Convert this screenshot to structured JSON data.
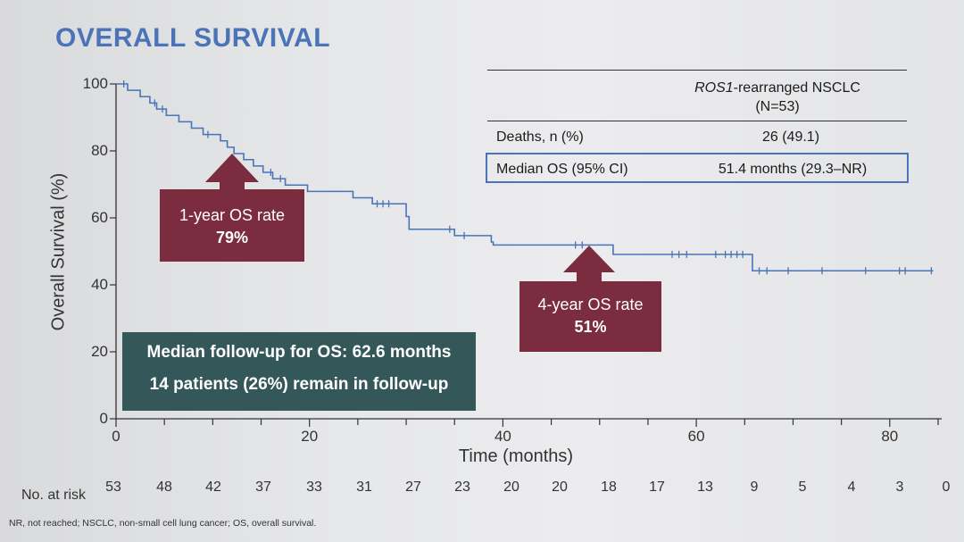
{
  "title": "OVERALL SURVIVAL",
  "footnote": "NR, not reached; NSCLC, non-small cell lung cancer; OS, overall survival.",
  "risk_table": {
    "label": "No. at risk",
    "months": [
      0,
      5,
      10,
      15,
      20,
      25,
      30,
      35,
      40,
      45,
      50,
      55,
      60,
      65,
      70,
      75,
      80,
      85
    ],
    "values": [
      "53",
      "48",
      "42",
      "37",
      "33",
      "31",
      "27",
      "23",
      "20",
      "20",
      "18",
      "17",
      "13",
      "9",
      "5",
      "4",
      "3",
      "0"
    ]
  },
  "stats_table": {
    "header_italic": "ROS1",
    "header_rest": "-rearranged NSCLC",
    "header_n": "(N=53)",
    "rows": [
      {
        "label": "Deaths, n (%)",
        "value": "26 (49.1)"
      },
      {
        "label": "Median OS (95% CI)",
        "value": "51.4 months (29.3–NR)"
      }
    ]
  },
  "callouts": {
    "one_year": {
      "line1": "1-year OS rate",
      "line2": "79%"
    },
    "four_year": {
      "line1": "4-year OS rate",
      "line2": "51%"
    }
  },
  "followup": {
    "line1": "Median follow-up for OS: 62.6 months",
    "line2": "14 patients (26%) remain in follow-up"
  },
  "colors": {
    "title": "#4a73b8",
    "curve": "#4a73b8",
    "callout": "#7b2d3f",
    "followup_box": "#34585a",
    "highlight_border": "#4a73b8"
  },
  "chart_data": {
    "type": "line",
    "title": "OVERALL SURVIVAL",
    "xlabel": "Time (months)",
    "ylabel": "Overall Survival (%)",
    "xlim": [
      0,
      85
    ],
    "ylim": [
      0,
      100
    ],
    "x_ticks": [
      0,
      20,
      40,
      60,
      80
    ],
    "y_ticks": [
      0,
      20,
      40,
      60,
      80,
      100
    ],
    "series": [
      {
        "name": "ROS1-rearranged NSCLC (N=53)",
        "steps": [
          [
            0,
            100
          ],
          [
            1.2,
            98.1
          ],
          [
            2.5,
            96.2
          ],
          [
            3.5,
            94.3
          ],
          [
            4.2,
            92.5
          ],
          [
            5.2,
            90.6
          ],
          [
            6.5,
            88.7
          ],
          [
            7.8,
            86.8
          ],
          [
            9,
            84.9
          ],
          [
            10.8,
            83
          ],
          [
            11.5,
            81.1
          ],
          [
            12.2,
            79.2
          ],
          [
            13.2,
            77.4
          ],
          [
            14.2,
            75.5
          ],
          [
            15.2,
            73.6
          ],
          [
            16.2,
            71.7
          ],
          [
            17.5,
            69.8
          ],
          [
            19.8,
            67.9
          ],
          [
            24.5,
            66
          ],
          [
            26.5,
            64.2
          ],
          [
            30,
            60.4
          ],
          [
            30.3,
            56.6
          ],
          [
            35,
            54.7
          ],
          [
            38.8,
            52.8
          ],
          [
            39,
            51.9
          ],
          [
            51.4,
            49.1
          ],
          [
            65.8,
            44.2
          ]
        ],
        "end_x": 84.5,
        "censor_x": [
          0.8,
          4,
          4.8,
          9.5,
          16,
          17,
          27,
          27.6,
          28.2,
          34.5,
          36,
          47.5,
          48.2,
          57.5,
          58.2,
          59,
          62,
          63,
          63.6,
          64.2,
          64.8,
          66.5,
          67.3,
          69.5,
          73,
          77.5,
          81,
          81.6,
          84.3
        ]
      }
    ],
    "annotations": [
      "1-year OS rate 79%",
      "4-year OS rate 51%",
      "Median follow-up for OS: 62.6 months",
      "14 patients (26%) remain in follow-up"
    ]
  }
}
